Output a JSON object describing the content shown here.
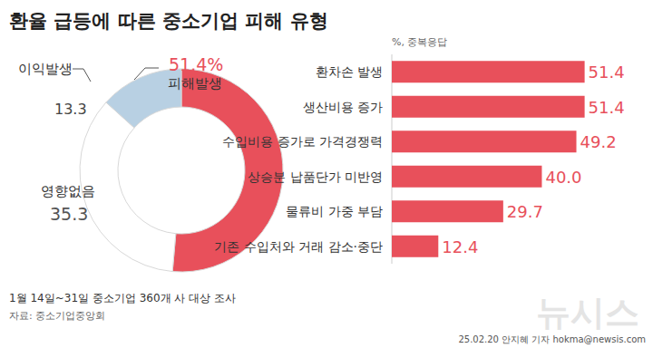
{
  "header": {
    "title": "환율 급등에 따른 중소기업 피해 유형"
  },
  "chart_data": [
    {
      "type": "pie",
      "categories": [
        "피해발생",
        "영향없음",
        "이익발생"
      ],
      "values": [
        51.4,
        35.3,
        13.3
      ],
      "value_labels": [
        "51.4%",
        "35.3",
        "13.3"
      ],
      "colors": [
        "#e8505b",
        "#ffffff",
        "#b8d0e3"
      ],
      "data_labels": true
    },
    {
      "type": "bar",
      "orientation": "horizontal",
      "subtitle": "%, 중복응답",
      "categories": [
        "환차손 발생",
        "생산비용 증가",
        "수입비용 증가로 가격경쟁력",
        "상승분 납품단가 미반영",
        "물류비 가중 부담",
        "기존 수입처와 거래 감소·중단"
      ],
      "values": [
        51.4,
        51.4,
        49.2,
        40.0,
        29.7,
        12.4
      ],
      "value_labels": [
        "51.4",
        "51.4",
        "49.2",
        "40.0",
        "29.7",
        "12.4"
      ],
      "color": "#e8505b",
      "xlim": [
        0,
        66
      ],
      "tick_labels": false,
      "data_labels": true
    }
  ],
  "footer": {
    "note": "1월 14일~31일  중소기업 360개 사 대상 조사",
    "source": "자료: 중소기업중앙회",
    "byline": "25.02.20 안지혜 기자 hokma@newsis.com",
    "watermark": "뉴시스"
  }
}
